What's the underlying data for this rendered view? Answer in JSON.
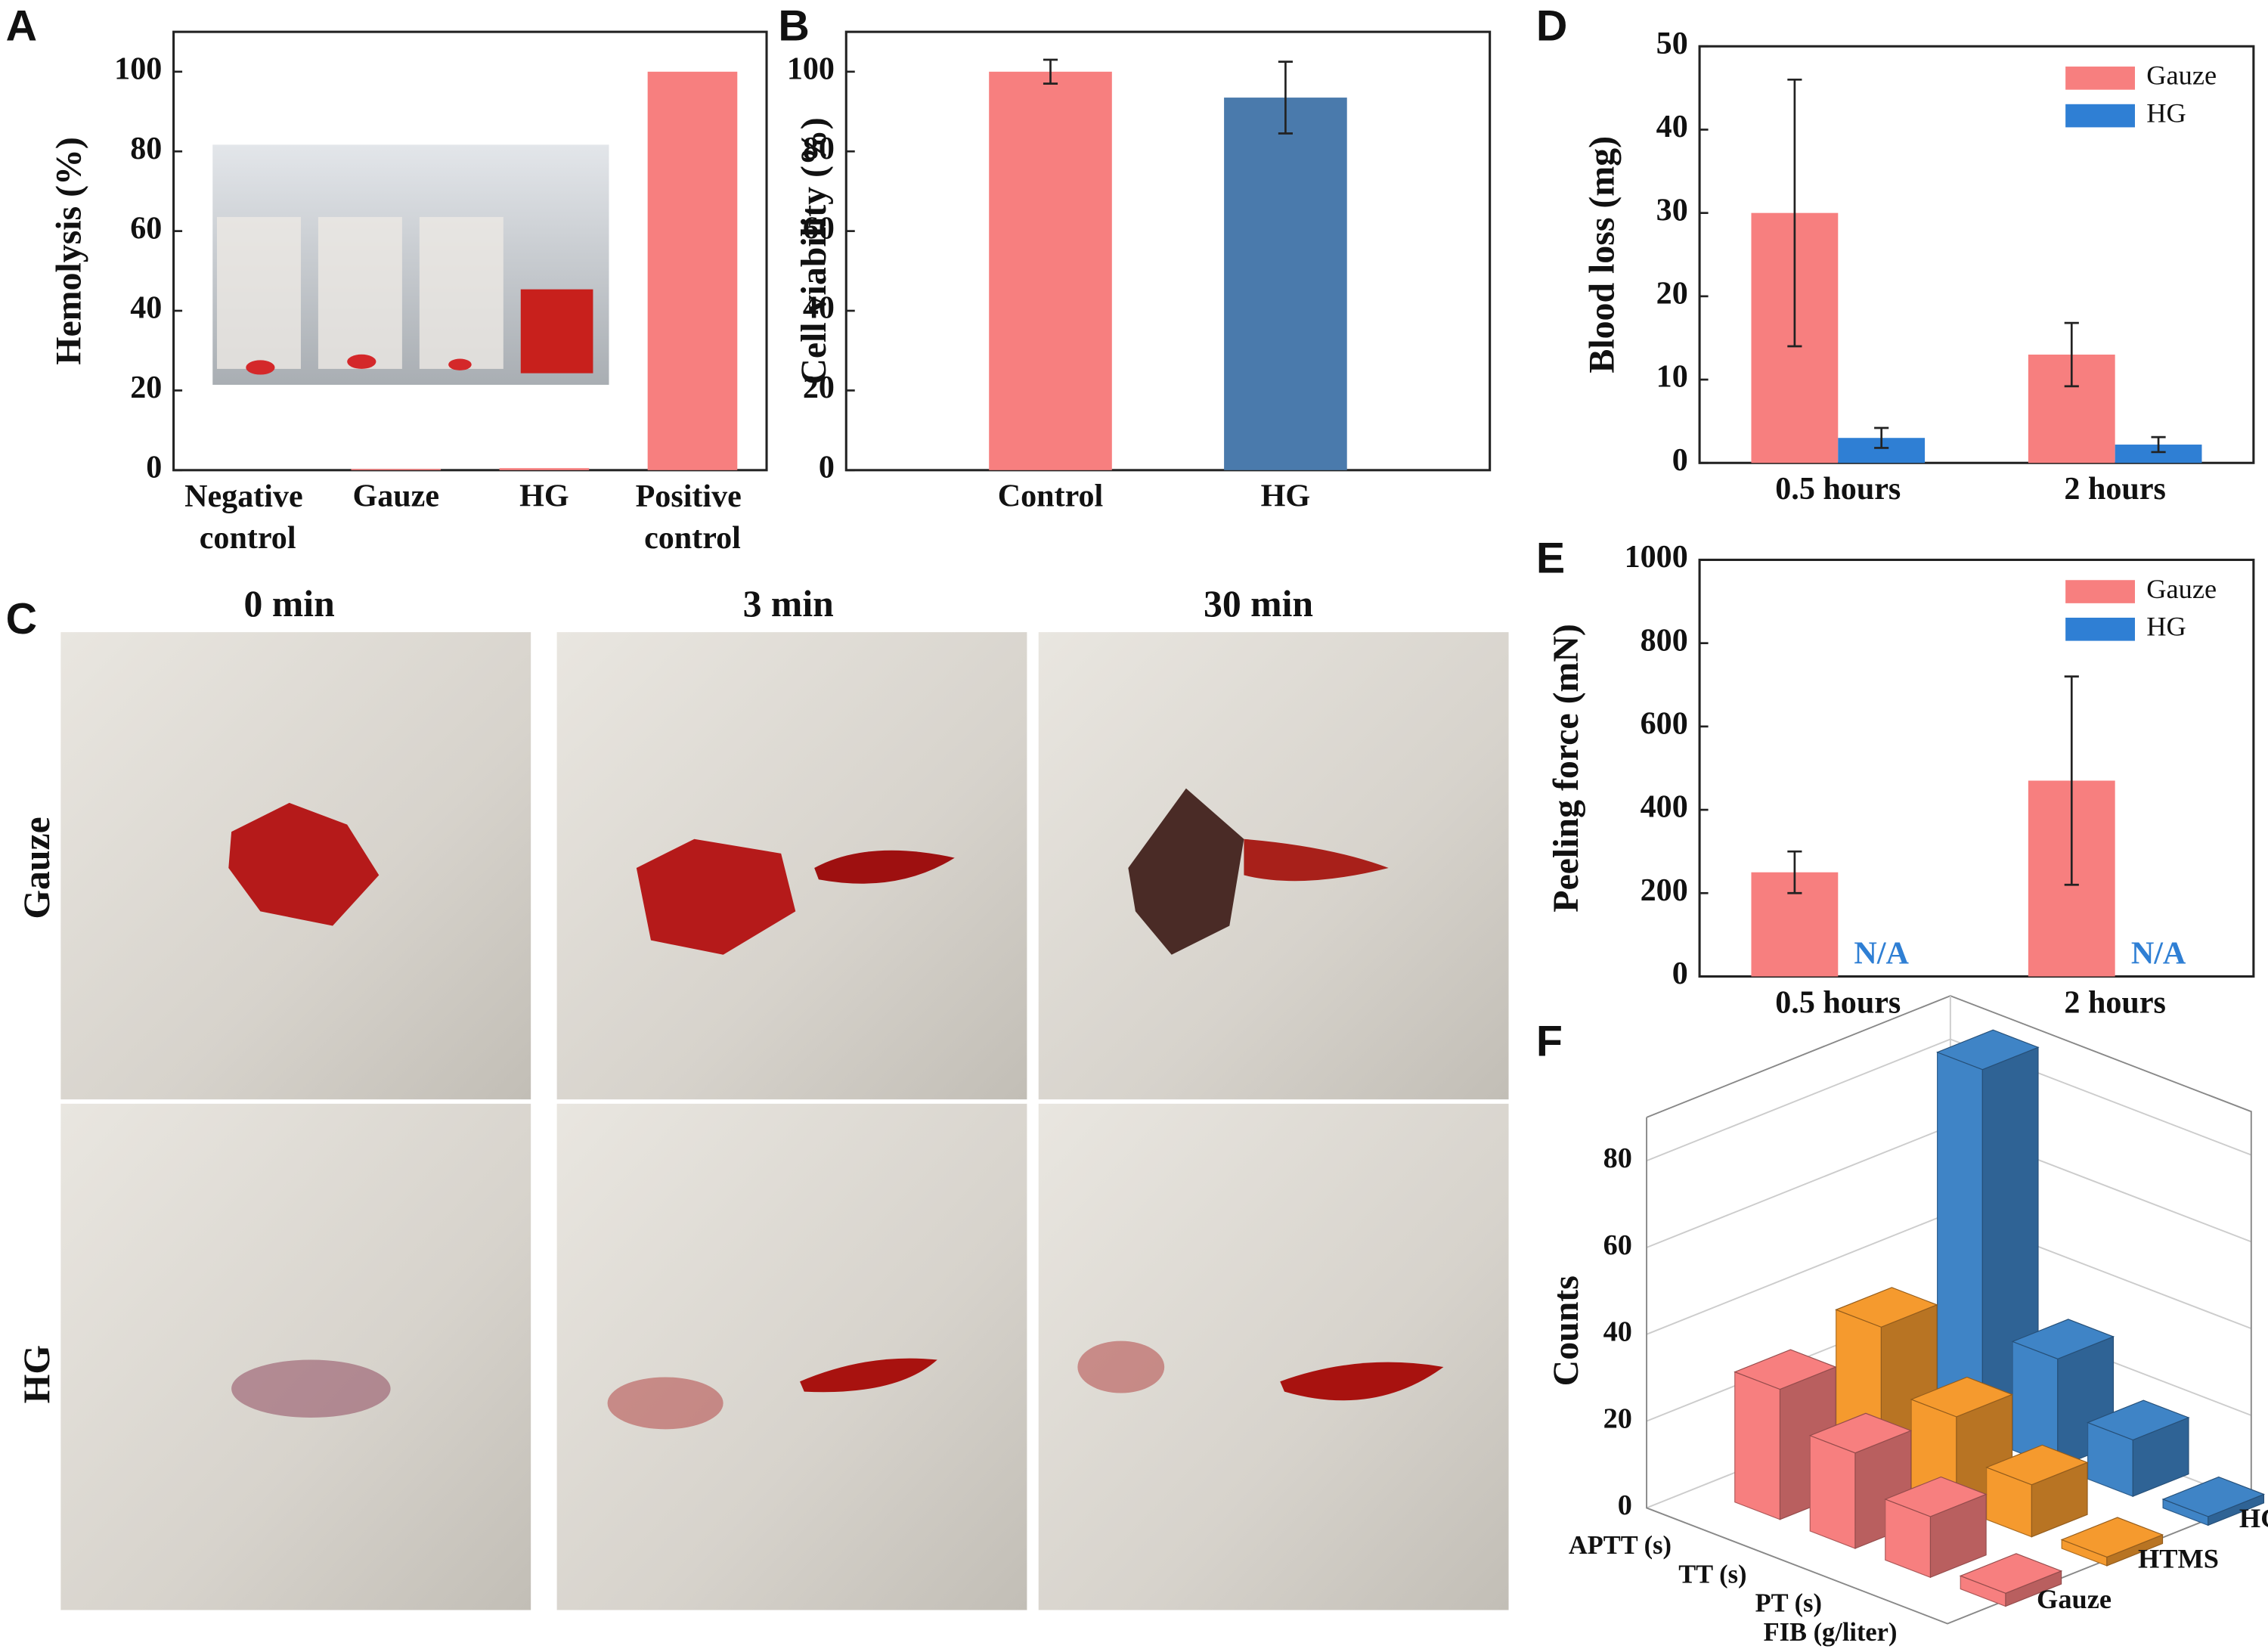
{
  "panel_labels": [
    "A",
    "B",
    "C",
    "D",
    "E",
    "F"
  ],
  "photo_panel": {
    "columns": [
      "0 min",
      "3 min",
      "30 min"
    ],
    "rows": [
      "Gauze",
      "HG"
    ]
  },
  "chart_data": [
    {
      "type": "bar",
      "y_label": "Hemolysis (%)",
      "categories": [
        "Negative control",
        "Gauze",
        "HG",
        "Positive control"
      ],
      "values": [
        0,
        0.3,
        0.5,
        100
      ],
      "color": "#f77f7f",
      "ylim": [
        0,
        110
      ],
      "yticks": [
        0,
        20,
        40,
        60,
        80,
        100
      ]
    },
    {
      "type": "bar",
      "y_label": "Cell viability (%)",
      "categories": [
        "Control",
        "HG"
      ],
      "values": [
        100,
        93.5
      ],
      "errors": [
        3,
        9
      ],
      "colors": [
        "#f77f7f",
        "#4a7aac"
      ],
      "ylim": [
        0,
        110
      ],
      "yticks": [
        0,
        20,
        40,
        60,
        80,
        100
      ]
    },
    {
      "type": "bar",
      "y_label": "Blood loss (mg)",
      "categories": [
        "0.5 hours",
        "2 hours"
      ],
      "legend": "upper right",
      "series": [
        {
          "name": "Gauze",
          "color": "#f77f7f",
          "values": [
            30,
            13
          ],
          "errors": [
            16,
            3.8
          ]
        },
        {
          "name": "HG",
          "color": "#2f7fd4",
          "values": [
            3,
            2.2
          ],
          "errors": [
            1.2,
            0.9
          ]
        }
      ],
      "ylim": [
        0,
        50
      ],
      "yticks": [
        0,
        10,
        20,
        30,
        40,
        50
      ]
    },
    {
      "type": "bar",
      "y_label": "Peeling force (mN)",
      "categories": [
        "0.5 hours",
        "2 hours"
      ],
      "legend": "upper right",
      "series": [
        {
          "name": "Gauze",
          "color": "#f77f7f",
          "values": [
            250,
            470
          ],
          "errors": [
            50,
            250
          ]
        },
        {
          "name": "HG",
          "color": "#2f7fd4",
          "values": [
            null,
            null
          ],
          "value_labels": [
            "N/A",
            "N/A"
          ]
        }
      ],
      "ylim": [
        0,
        1000
      ],
      "yticks": [
        0,
        200,
        400,
        600,
        800,
        1000
      ]
    },
    {
      "type": "bar3d",
      "y_label": "Counts",
      "categories": [
        "APTT (s)",
        "TT (s)",
        "PT (s)",
        "FIB (g/liter)"
      ],
      "series": [
        {
          "name": "Gauze",
          "color": "#f77f7f",
          "values": [
            30,
            22,
            14,
            3
          ]
        },
        {
          "name": "HTMS",
          "color": "#f59a2e",
          "values": [
            35,
            21,
            12,
            2
          ]
        },
        {
          "name": "HG",
          "color": "#3f84c6",
          "values": [
            85,
            25,
            13,
            2
          ]
        }
      ],
      "ylim": [
        0,
        90
      ],
      "yticks": [
        0,
        20,
        40,
        60,
        80
      ]
    }
  ]
}
